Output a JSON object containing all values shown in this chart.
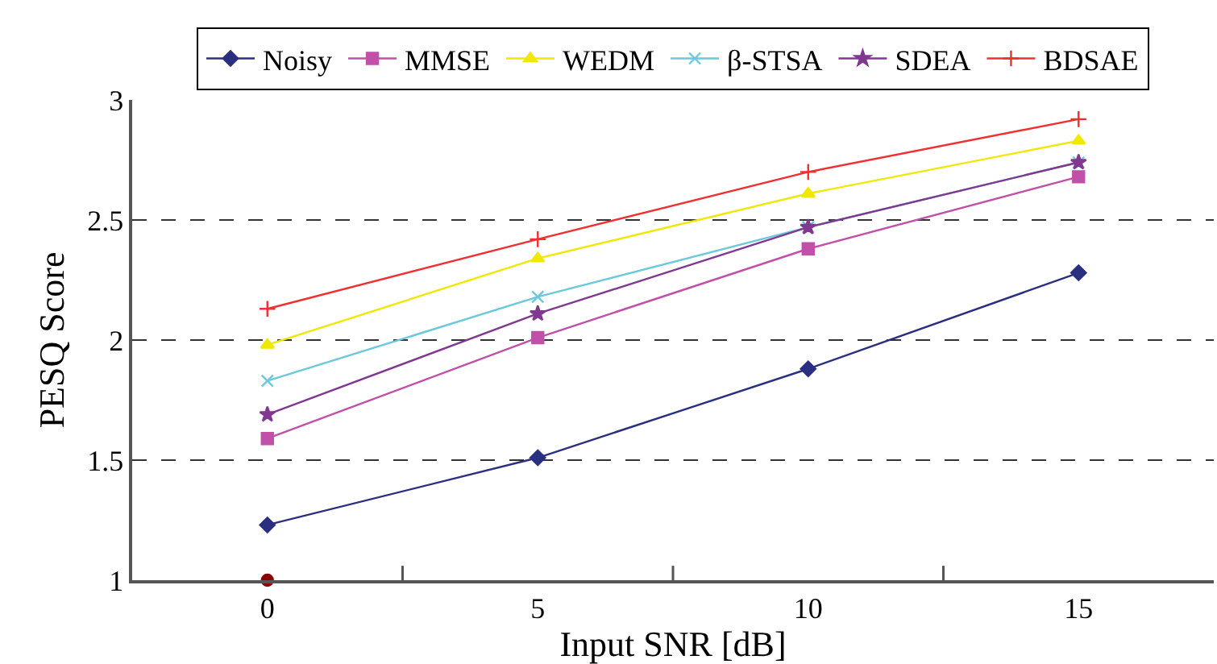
{
  "chart_data": {
    "type": "line",
    "xlabel": "Input SNR [dB]",
    "ylabel": "PESQ Score",
    "categories": [
      "0",
      "5",
      "10",
      "15"
    ],
    "series": [
      {
        "name": "Noisy",
        "color": "#2b2f7f",
        "marker": "diamond",
        "values": [
          1.23,
          1.51,
          1.88,
          2.28
        ]
      },
      {
        "name": "MMSE",
        "color": "#c050a8",
        "marker": "square",
        "values": [
          1.59,
          2.01,
          2.38,
          2.68
        ]
      },
      {
        "name": "WEDM",
        "color": "#f0e800",
        "marker": "triangle",
        "values": [
          1.98,
          2.34,
          2.61,
          2.83
        ]
      },
      {
        "name": "β-STSA",
        "color": "#6cc8dc",
        "marker": "cross",
        "values": [
          1.83,
          2.18,
          2.47,
          2.74
        ]
      },
      {
        "name": "SDEA",
        "color": "#803890",
        "marker": "star",
        "values": [
          1.69,
          2.11,
          2.47,
          2.74
        ]
      },
      {
        "name": "BDSAE",
        "color": "#f03030",
        "marker": "plus",
        "values": [
          2.13,
          2.42,
          2.7,
          2.92
        ]
      },
      {
        "type": "scatter",
        "color": "#8b0000",
        "marker": "circle",
        "values": [
          1,
          null,
          null,
          null
        ]
      }
    ],
    "ylim": [
      1,
      3
    ],
    "yticks": [
      1,
      1.5,
      2,
      2.5,
      3
    ],
    "grid": "y",
    "line_style": "solid",
    "legend": "top"
  }
}
